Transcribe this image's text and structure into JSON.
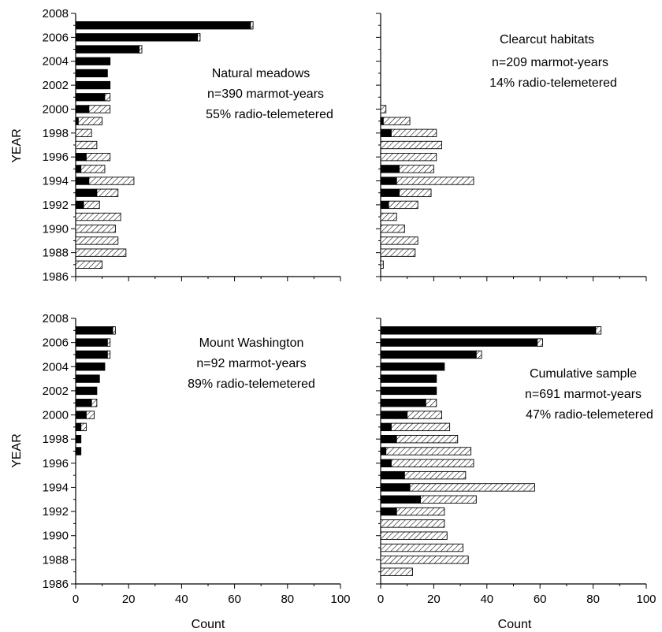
{
  "colors": {
    "radio": "#000000",
    "other_hatch": "#000000",
    "background": "#ffffff"
  },
  "chart_data": [
    {
      "type": "bar",
      "orientation": "horizontal",
      "stacked": true,
      "xlabel": "",
      "ylabel": "YEAR",
      "xlim": [
        0,
        100
      ],
      "ylim": [
        1986,
        2008
      ],
      "y_ticks": [
        "2008",
        "2006",
        "2004",
        "2002",
        "2000",
        "1998",
        "1996",
        "1994",
        "1992",
        "1990",
        "1988",
        "1986"
      ],
      "x_ticks": [],
      "annotations": [
        "Natural meadows",
        "n=390 marmot-years",
        "55% radio-telemetered"
      ],
      "categories": [
        1987,
        1988,
        1989,
        1990,
        1991,
        1992,
        1993,
        1994,
        1995,
        1996,
        1997,
        1998,
        1999,
        2000,
        2001,
        2002,
        2003,
        2004,
        2005,
        2006,
        2007
      ],
      "series": [
        {
          "fill": "solid",
          "values": [
            0,
            0,
            0,
            0,
            0,
            3,
            8,
            5,
            2,
            4,
            0,
            0,
            1,
            5,
            11,
            13,
            12,
            13,
            24,
            46,
            66
          ]
        },
        {
          "fill": "hatched",
          "values": [
            10,
            19,
            16,
            15,
            17,
            6,
            8,
            17,
            9,
            9,
            8,
            6,
            9,
            8,
            2,
            0,
            0,
            0,
            1,
            1,
            1
          ]
        }
      ]
    },
    {
      "type": "bar",
      "orientation": "horizontal",
      "stacked": true,
      "xlabel": "",
      "ylabel": "",
      "xlim": [
        0,
        100
      ],
      "ylim": [
        1986,
        2008
      ],
      "y_ticks": [],
      "x_ticks": [],
      "annotations": [
        "Clearcut habitats",
        "n=209 marmot-years",
        "14% radio-telemetered"
      ],
      "categories": [
        1987,
        1988,
        1989,
        1990,
        1991,
        1992,
        1993,
        1994,
        1995,
        1996,
        1997,
        1998,
        1999,
        2000,
        2001,
        2002,
        2003,
        2004,
        2005,
        2006,
        2007
      ],
      "series": [
        {
          "fill": "solid",
          "values": [
            0,
            0,
            0,
            0,
            0,
            3,
            7,
            6,
            7,
            0,
            0,
            4,
            1,
            0,
            0,
            0,
            0,
            0,
            0,
            0,
            0
          ]
        },
        {
          "fill": "hatched",
          "values": [
            1,
            13,
            14,
            9,
            6,
            11,
            12,
            29,
            13,
            21,
            23,
            17,
            10,
            2,
            0,
            0,
            0,
            0,
            0,
            0,
            0
          ]
        }
      ]
    },
    {
      "type": "bar",
      "orientation": "horizontal",
      "stacked": true,
      "xlabel": "Count",
      "ylabel": "YEAR",
      "xlim": [
        0,
        100
      ],
      "ylim": [
        1986,
        2008
      ],
      "y_ticks": [
        "2008",
        "2006",
        "2004",
        "2002",
        "2000",
        "1998",
        "1996",
        "1994",
        "1992",
        "1990",
        "1988",
        "1986"
      ],
      "x_ticks": [
        "0",
        "20",
        "40",
        "60",
        "80",
        "100"
      ],
      "annotations": [
        "Mount Washington",
        "n=92 marmot-years",
        "89% radio-telemetered"
      ],
      "categories": [
        1987,
        1988,
        1989,
        1990,
        1991,
        1992,
        1993,
        1994,
        1995,
        1996,
        1997,
        1998,
        1999,
        2000,
        2001,
        2002,
        2003,
        2004,
        2005,
        2006,
        2007
      ],
      "series": [
        {
          "fill": "solid",
          "values": [
            0,
            0,
            0,
            0,
            0,
            0,
            0,
            0,
            0,
            0,
            2,
            2,
            2,
            4,
            6,
            8,
            9,
            11,
            12,
            12,
            14
          ]
        },
        {
          "fill": "hatched",
          "values": [
            0,
            0,
            0,
            0,
            0,
            0,
            0,
            0,
            0,
            0,
            0,
            0,
            2,
            3,
            2,
            0,
            0,
            0,
            1,
            1,
            1
          ]
        }
      ]
    },
    {
      "type": "bar",
      "orientation": "horizontal",
      "stacked": true,
      "xlabel": "Count",
      "ylabel": "",
      "xlim": [
        0,
        100
      ],
      "ylim": [
        1986,
        2008
      ],
      "y_ticks": [],
      "x_ticks": [
        "0",
        "20",
        "40",
        "60",
        "80",
        "100"
      ],
      "annotations": [
        "Cumulative sample",
        "n=691 marmot-years",
        "47% radio-telemetered"
      ],
      "categories": [
        1987,
        1988,
        1989,
        1990,
        1991,
        1992,
        1993,
        1994,
        1995,
        1996,
        1997,
        1998,
        1999,
        2000,
        2001,
        2002,
        2003,
        2004,
        2005,
        2006,
        2007
      ],
      "series": [
        {
          "fill": "solid",
          "values": [
            0,
            0,
            0,
            0,
            0,
            6,
            15,
            11,
            9,
            4,
            2,
            6,
            4,
            10,
            17,
            21,
            21,
            24,
            36,
            59,
            81
          ]
        },
        {
          "fill": "hatched",
          "values": [
            12,
            33,
            31,
            25,
            24,
            18,
            21,
            47,
            23,
            31,
            32,
            23,
            22,
            13,
            4,
            0,
            0,
            0,
            2,
            2,
            2
          ]
        }
      ]
    }
  ]
}
